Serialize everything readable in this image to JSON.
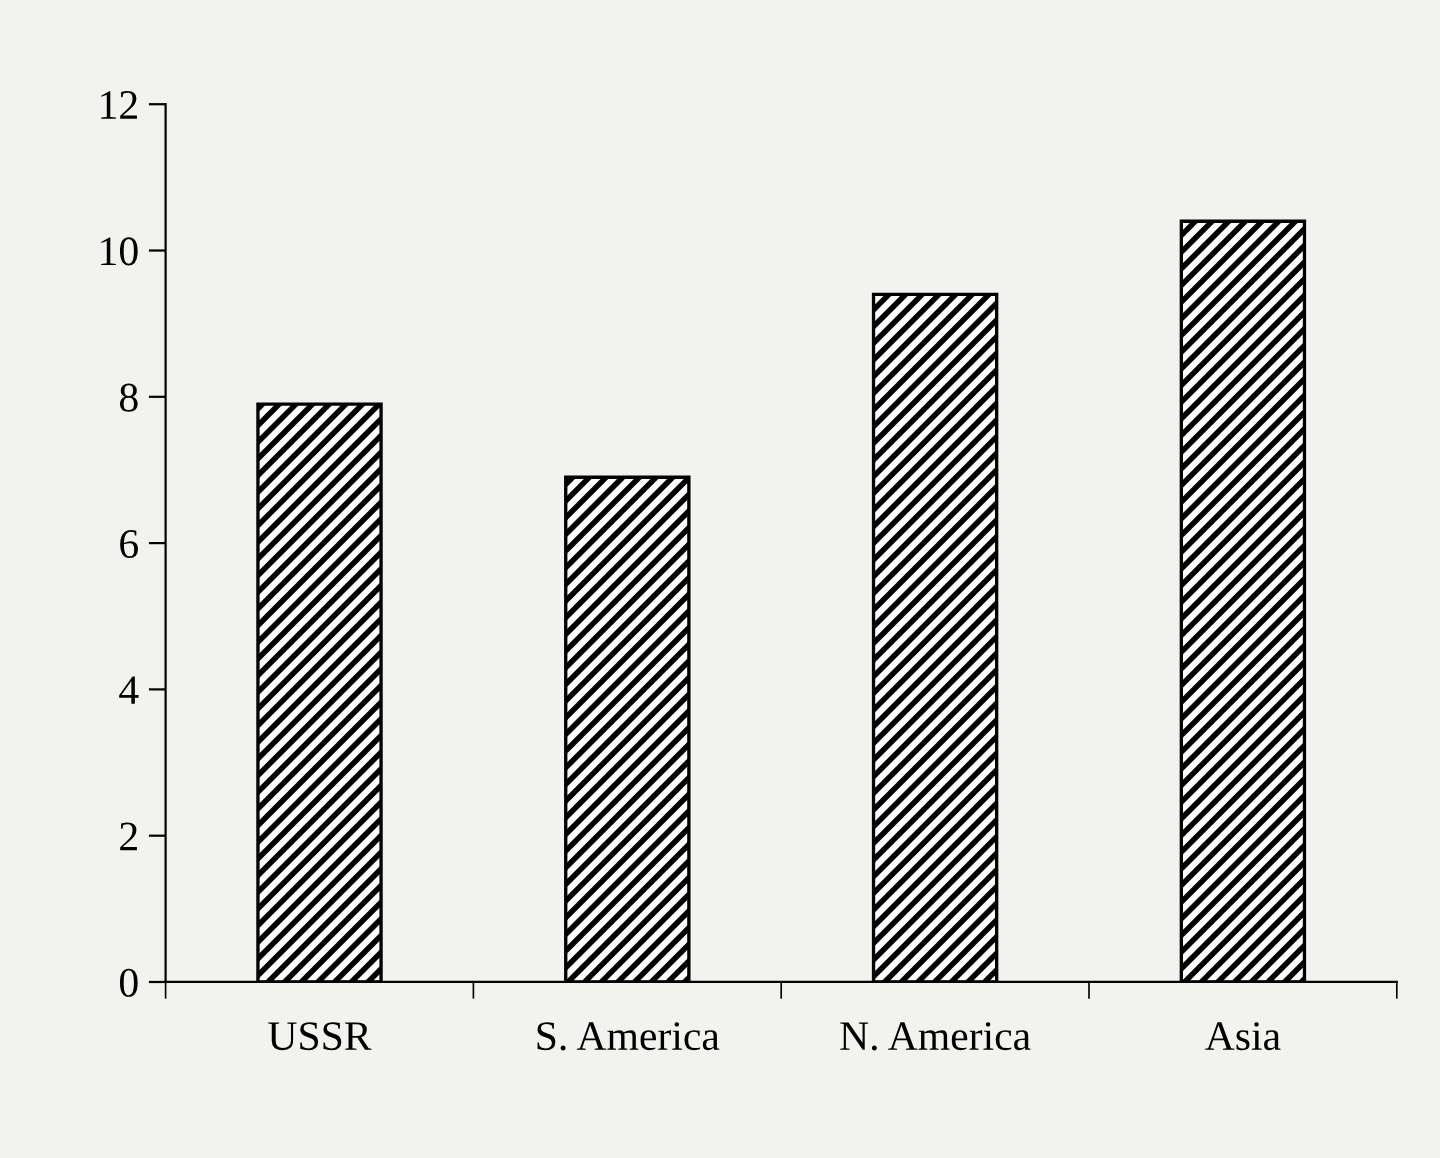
{
  "chart_data": {
    "type": "bar",
    "categories": [
      "USSR",
      "S. America",
      "N. America",
      "Asia"
    ],
    "values": [
      7.9,
      6.9,
      9.4,
      10.4
    ],
    "color": "#000000",
    "ylim": [
      0,
      12
    ],
    "yticks": [
      0,
      2,
      4,
      6,
      8,
      10,
      12
    ],
    "grid": false,
    "legend": false
  }
}
